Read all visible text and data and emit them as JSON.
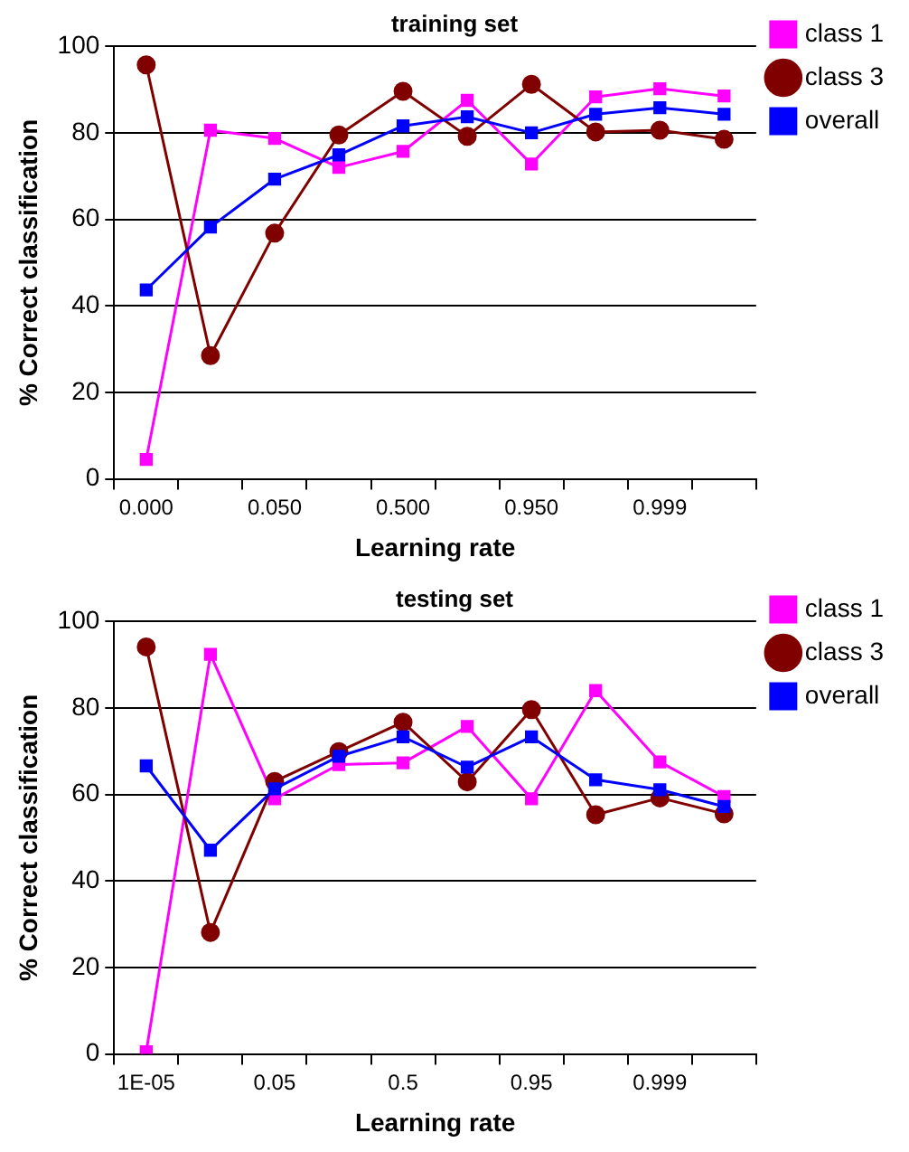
{
  "chart_data": [
    {
      "type": "line",
      "title": "training set",
      "xlabel": "Learning rate",
      "ylabel": "% Correct classification",
      "categories": [
        "0.000",
        null,
        "0.050",
        null,
        "0.500",
        null,
        "0.950",
        null,
        "0.999",
        null
      ],
      "series": [
        {
          "name": "class 1",
          "color": "#ff00ff",
          "marker": "square",
          "values": [
            4.5,
            80.6,
            78.7,
            72,
            75.7,
            87.5,
            72.8,
            88.3,
            90.2,
            88.5
          ]
        },
        {
          "name": "class 3",
          "color": "#800000",
          "marker": "circle",
          "values": [
            95.7,
            28.5,
            56.8,
            79.5,
            89.6,
            79.2,
            91.2,
            80.2,
            80.6,
            78.5
          ]
        },
        {
          "name": "overall",
          "color": "#0000ff",
          "marker": "square",
          "values": [
            43.7,
            58.2,
            69.3,
            74.9,
            81.6,
            83.7,
            80,
            84.3,
            85.8,
            84.3
          ]
        }
      ],
      "ylim": [
        0,
        100
      ],
      "yticks": [
        0,
        20,
        40,
        60,
        80,
        100
      ],
      "grid": "y",
      "legend": "top right",
      "line_style": "solid"
    },
    {
      "type": "line",
      "title": "testing set",
      "xlabel": "Learning rate",
      "ylabel": "% Correct classification",
      "categories": [
        "1E-05",
        null,
        "0.05",
        null,
        "0.5",
        null,
        "0.95",
        null,
        "0.999",
        null
      ],
      "series": [
        {
          "name": "class 1",
          "color": "#ff00ff",
          "marker": "square",
          "values": [
            0.5,
            92.4,
            59,
            66.9,
            67.3,
            75.7,
            59,
            84,
            67.5,
            59.5
          ]
        },
        {
          "name": "class 3",
          "color": "#800000",
          "marker": "circle",
          "values": [
            94.1,
            28.1,
            63,
            69.9,
            76.7,
            62.9,
            79.6,
            55.3,
            59.2,
            55.5
          ]
        },
        {
          "name": "overall",
          "color": "#0000ff",
          "marker": "square",
          "values": [
            66.6,
            47.1,
            61.3,
            68.8,
            73.3,
            66.3,
            73.3,
            63.4,
            61.1,
            57.2
          ]
        }
      ],
      "ylim": [
        0,
        100
      ],
      "yticks": [
        0,
        20,
        40,
        60,
        80,
        100
      ],
      "grid": "y",
      "legend": "top right",
      "line_style": "solid"
    }
  ]
}
